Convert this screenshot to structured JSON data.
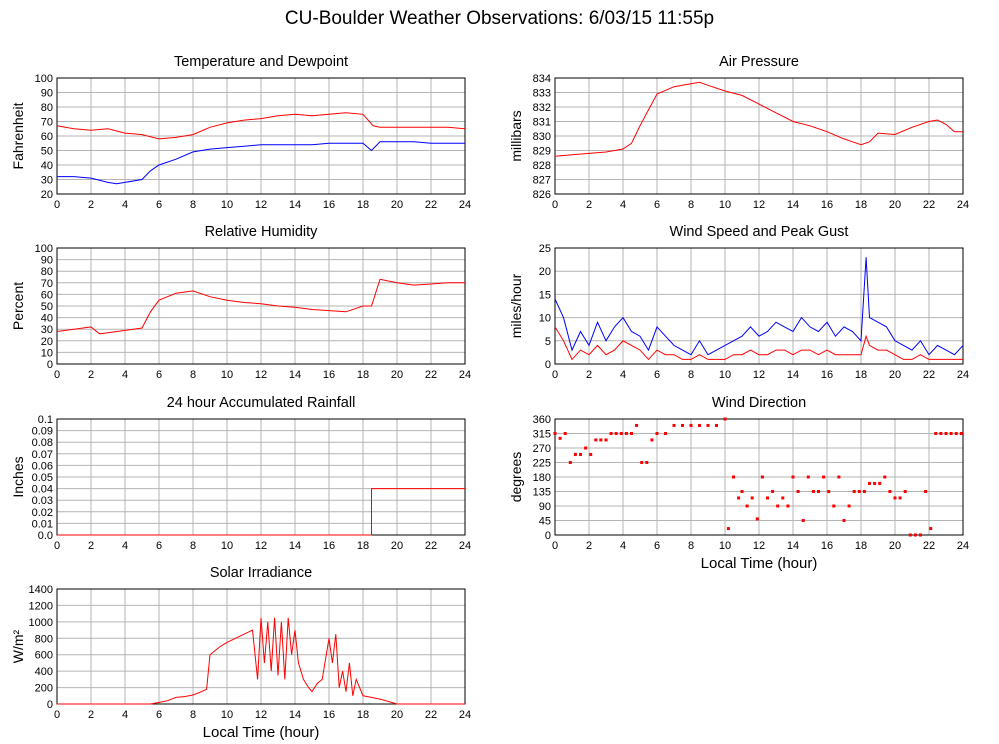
{
  "page": {
    "title": "CU-Boulder Weather Observations: 6/03/15 11:55p"
  },
  "colors": {
    "red": "#ff0000",
    "blue": "#0000ff",
    "grid": "#b4b4b4"
  },
  "chart_data": [
    {
      "type": "line",
      "title": "Temperature and Dewpoint",
      "ylabel": "Fahrenheit",
      "xlabel": "",
      "xlim": [
        0,
        24
      ],
      "ylim": [
        20,
        100
      ],
      "xticks": [
        0,
        2,
        4,
        6,
        8,
        10,
        12,
        14,
        16,
        18,
        20,
        22,
        24
      ],
      "yticks": [
        20,
        30,
        40,
        50,
        60,
        70,
        80,
        90,
        100
      ],
      "grid": true,
      "series": [
        {
          "color": "red",
          "x": [
            0,
            1,
            2,
            3,
            4,
            5,
            6,
            7,
            8,
            9,
            10,
            11,
            12,
            13,
            14,
            15,
            16,
            17,
            18,
            18.6,
            19,
            20,
            21,
            22,
            23,
            24
          ],
          "y": [
            67,
            65,
            64,
            65,
            62,
            61,
            58,
            59,
            61,
            66,
            69,
            71,
            72,
            74,
            75,
            74,
            75,
            76,
            75,
            67,
            66,
            66,
            66,
            66,
            66,
            65
          ]
        },
        {
          "color": "blue",
          "x": [
            0,
            1,
            2,
            3,
            3.5,
            4,
            5,
            5.5,
            6,
            7,
            8,
            9,
            10,
            11,
            12,
            13,
            14,
            15,
            16,
            17,
            18,
            18.5,
            19,
            20,
            21,
            22,
            23,
            24
          ],
          "y": [
            32,
            32,
            31,
            28,
            27,
            28,
            30,
            36,
            40,
            44,
            49,
            51,
            52,
            53,
            54,
            54,
            54,
            54,
            55,
            55,
            55,
            50,
            56,
            56,
            56,
            55,
            55,
            55
          ]
        }
      ]
    },
    {
      "type": "line",
      "title": "Air Pressure",
      "ylabel": "millibars",
      "xlabel": "",
      "xlim": [
        0,
        24
      ],
      "ylim": [
        826,
        834
      ],
      "xticks": [
        0,
        2,
        4,
        6,
        8,
        10,
        12,
        14,
        16,
        18,
        20,
        22,
        24
      ],
      "yticks": [
        826,
        827,
        828,
        829,
        830,
        831,
        832,
        833,
        834
      ],
      "grid": true,
      "series": [
        {
          "color": "red",
          "x": [
            0,
            1,
            2,
            3,
            4,
            4.5,
            5,
            5.5,
            6,
            7,
            8,
            8.5,
            9,
            10,
            11,
            12,
            13,
            14,
            15,
            16,
            17,
            17.5,
            18,
            18.5,
            19,
            20,
            21,
            22,
            22.5,
            23,
            23.5,
            24
          ],
          "y": [
            828.6,
            828.7,
            828.8,
            828.9,
            829.1,
            829.5,
            830.7,
            831.8,
            832.9,
            833.4,
            833.6,
            833.7,
            833.5,
            833.1,
            832.8,
            832.2,
            831.6,
            831.0,
            830.7,
            830.3,
            829.8,
            829.6,
            829.4,
            829.6,
            830.2,
            830.1,
            830.6,
            831.0,
            831.1,
            830.8,
            830.3,
            830.3
          ]
        }
      ]
    },
    {
      "type": "line",
      "title": "Relative Humidity",
      "ylabel": "Percent",
      "xlabel": "",
      "xlim": [
        0,
        24
      ],
      "ylim": [
        0,
        100
      ],
      "xticks": [
        0,
        2,
        4,
        6,
        8,
        10,
        12,
        14,
        16,
        18,
        20,
        22,
        24
      ],
      "yticks": [
        0,
        10,
        20,
        30,
        40,
        50,
        60,
        70,
        80,
        90,
        100
      ],
      "grid": true,
      "series": [
        {
          "color": "red",
          "x": [
            0,
            1,
            2,
            2.5,
            3,
            4,
            5,
            5.5,
            6,
            6.5,
            7,
            8,
            9,
            10,
            11,
            12,
            13,
            14,
            15,
            16,
            17,
            18,
            18.5,
            19,
            20,
            21,
            22,
            23,
            24
          ],
          "y": [
            28,
            30,
            32,
            26,
            27,
            29,
            31,
            45,
            55,
            58,
            61,
            63,
            58,
            55,
            53,
            52,
            50,
            49,
            47,
            46,
            45,
            50,
            50,
            73,
            70,
            68,
            69,
            70,
            70
          ]
        }
      ]
    },
    {
      "type": "line",
      "title": "Wind Speed and Peak Gust",
      "ylabel": "miles/hour",
      "xlabel": "",
      "xlim": [
        0,
        24
      ],
      "ylim": [
        0,
        25
      ],
      "xticks": [
        0,
        2,
        4,
        6,
        8,
        10,
        12,
        14,
        16,
        18,
        20,
        22,
        24
      ],
      "yticks": [
        0,
        5,
        10,
        15,
        20,
        25
      ],
      "grid": true,
      "series": [
        {
          "color": "blue",
          "x": [
            0,
            0.5,
            1,
            1.5,
            2,
            2.5,
            3,
            3.5,
            4,
            4.5,
            5,
            5.5,
            6,
            6.5,
            7,
            7.5,
            8,
            8.5,
            9,
            9.5,
            10,
            10.5,
            11,
            11.5,
            12,
            12.5,
            13,
            13.5,
            14,
            14.5,
            15,
            15.5,
            16,
            16.5,
            17,
            17.5,
            18,
            18.3,
            18.5,
            19,
            19.5,
            20,
            20.5,
            21,
            21.5,
            22,
            22.5,
            23,
            23.5,
            24
          ],
          "y": [
            14,
            10,
            3,
            7,
            4,
            9,
            5,
            8,
            10,
            7,
            6,
            3,
            8,
            6,
            4,
            3,
            2,
            5,
            2,
            3,
            4,
            5,
            6,
            8,
            6,
            7,
            9,
            8,
            7,
            10,
            8,
            7,
            9,
            6,
            8,
            7,
            5,
            23,
            10,
            9,
            8,
            5,
            4,
            3,
            5,
            2,
            4,
            3,
            2,
            4
          ]
        },
        {
          "color": "red",
          "x": [
            0,
            0.5,
            1,
            1.5,
            2,
            2.5,
            3,
            3.5,
            4,
            4.5,
            5,
            5.5,
            6,
            6.5,
            7,
            7.5,
            8,
            8.5,
            9,
            9.5,
            10,
            10.5,
            11,
            11.5,
            12,
            12.5,
            13,
            13.5,
            14,
            14.5,
            15,
            15.5,
            16,
            16.5,
            17,
            17.5,
            18,
            18.3,
            18.5,
            19,
            19.5,
            20,
            20.5,
            21,
            21.5,
            22,
            22.5,
            23,
            23.5,
            24
          ],
          "y": [
            8,
            5,
            1,
            3,
            2,
            4,
            2,
            3,
            5,
            4,
            3,
            1,
            3,
            2,
            2,
            1,
            1,
            2,
            1,
            1,
            1,
            2,
            2,
            3,
            2,
            2,
            3,
            3,
            2,
            3,
            3,
            2,
            3,
            2,
            2,
            2,
            2,
            6,
            4,
            3,
            3,
            2,
            1,
            1,
            2,
            1,
            1,
            1,
            1,
            1
          ]
        }
      ]
    },
    {
      "type": "line",
      "title": "24 hour Accumulated Rainfall",
      "ylabel": "Inches",
      "xlabel": "",
      "xlim": [
        0,
        24
      ],
      "ylim": [
        0,
        0.1
      ],
      "xticks": [
        0,
        2,
        4,
        6,
        8,
        10,
        12,
        14,
        16,
        18,
        20,
        22,
        24
      ],
      "yticks": [
        0,
        0.01,
        0.02,
        0.03,
        0.04,
        0.05,
        0.06,
        0.07,
        0.08,
        0.09,
        0.1
      ],
      "ytick_labels": [
        "0.0",
        "0.01",
        "0.02",
        "0.03",
        "0.04",
        "0.05",
        "0.06",
        "0.07",
        "0.08",
        "0.09",
        "0.1"
      ],
      "grid": true,
      "series": [
        {
          "color": "red",
          "x": [
            0,
            18.5,
            18.5,
            24
          ],
          "y": [
            0,
            0,
            0.04,
            0.04
          ]
        }
      ]
    },
    {
      "type": "scatter",
      "title": "Wind Direction",
      "ylabel": "degrees",
      "xlabel": "Local Time (hour)",
      "xlim": [
        0,
        24
      ],
      "ylim": [
        0,
        360
      ],
      "xticks": [
        0,
        2,
        4,
        6,
        8,
        10,
        12,
        14,
        16,
        18,
        20,
        22,
        24
      ],
      "yticks": [
        0,
        45,
        90,
        135,
        180,
        225,
        270,
        315,
        360
      ],
      "grid": true,
      "series": [
        {
          "color": "red",
          "x": [
            0,
            0.3,
            0.6,
            0.9,
            1.2,
            1.5,
            1.8,
            2.1,
            2.4,
            2.7,
            3.0,
            3.3,
            3.6,
            3.9,
            4.2,
            4.5,
            4.8,
            5.1,
            5.4,
            5.7,
            6.0,
            6.5,
            7.0,
            7.5,
            8.0,
            8.5,
            9.0,
            9.5,
            10.0,
            10.2,
            10.5,
            10.8,
            11.0,
            11.3,
            11.6,
            11.9,
            12.2,
            12.5,
            12.8,
            13.1,
            13.4,
            13.7,
            14.0,
            14.3,
            14.6,
            14.9,
            15.2,
            15.5,
            15.8,
            16.1,
            16.4,
            16.7,
            17.0,
            17.3,
            17.6,
            17.9,
            18.2,
            18.5,
            18.8,
            19.1,
            19.4,
            19.7,
            20.0,
            20.3,
            20.6,
            20.9,
            21.2,
            21.5,
            21.8,
            22.1,
            22.4,
            22.7,
            23.0,
            23.3,
            23.6,
            23.9
          ],
          "y": [
            315,
            300,
            315,
            225,
            250,
            250,
            270,
            250,
            295,
            295,
            295,
            315,
            315,
            315,
            315,
            315,
            340,
            225,
            225,
            295,
            315,
            315,
            340,
            340,
            340,
            340,
            340,
            340,
            360,
            20,
            180,
            115,
            135,
            90,
            115,
            50,
            180,
            115,
            135,
            90,
            115,
            90,
            180,
            135,
            45,
            180,
            135,
            135,
            180,
            135,
            90,
            180,
            45,
            90,
            135,
            135,
            135,
            160,
            160,
            160,
            180,
            135,
            115,
            115,
            135,
            0,
            0,
            0,
            135,
            20,
            315,
            315,
            315,
            315,
            315,
            315
          ]
        }
      ]
    },
    {
      "type": "area",
      "title": "Solar Irradiance",
      "ylabel": "W/m²",
      "xlabel": "Local Time (hour)",
      "xlim": [
        0,
        24
      ],
      "ylim": [
        0,
        1400
      ],
      "xticks": [
        0,
        2,
        4,
        6,
        8,
        10,
        12,
        14,
        16,
        18,
        20,
        22,
        24
      ],
      "yticks": [
        0,
        200,
        400,
        600,
        800,
        1000,
        1200,
        1400
      ],
      "grid": true,
      "series": [
        {
          "color": "red",
          "x": [
            0,
            5.5,
            6,
            6.5,
            7,
            7.5,
            8,
            8.5,
            8.8,
            9,
            9.3,
            9.6,
            10,
            10.5,
            11,
            11.5,
            11.8,
            12,
            12.2,
            12.4,
            12.6,
            12.8,
            13,
            13.2,
            13.4,
            13.6,
            13.8,
            14,
            14.2,
            14.5,
            14.8,
            15,
            15.3,
            15.6,
            16,
            16.2,
            16.4,
            16.6,
            16.8,
            17,
            17.2,
            17.4,
            17.6,
            17.8,
            18,
            18.5,
            19,
            19.5,
            20,
            20.5,
            24
          ],
          "y": [
            0,
            0,
            20,
            40,
            80,
            90,
            110,
            150,
            180,
            600,
            650,
            700,
            750,
            800,
            850,
            900,
            300,
            1050,
            500,
            1000,
            400,
            1050,
            350,
            1000,
            300,
            1050,
            600,
            900,
            500,
            300,
            200,
            150,
            250,
            300,
            800,
            500,
            850,
            200,
            400,
            150,
            500,
            100,
            300,
            200,
            100,
            80,
            60,
            30,
            0,
            0,
            0
          ]
        }
      ]
    }
  ]
}
